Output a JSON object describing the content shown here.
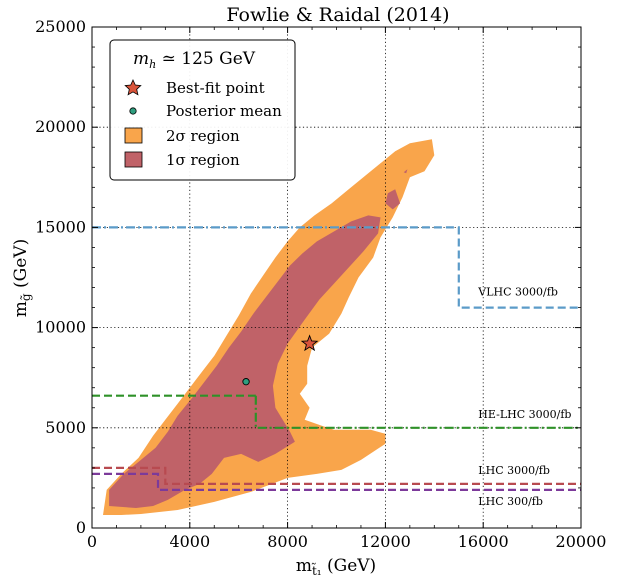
{
  "chart_data": {
    "type": "contour",
    "title": "Fowlie & Raidal (2014)",
    "xlabel": "m_t̃₁ (GeV)",
    "ylabel": "m_g̃ (GeV)",
    "xlim": [
      0,
      20000
    ],
    "ylim": [
      0,
      25000
    ],
    "xticks": [
      "0",
      "4000",
      "8000",
      "12000",
      "16000",
      "20000"
    ],
    "yticks": [
      "0",
      "5000",
      "10000",
      "15000",
      "20000",
      "25000"
    ],
    "grid": true,
    "legend": {
      "placement": "top-left",
      "title": "m_h ≃ 125 GeV",
      "entries": [
        {
          "label": "Best-fit point",
          "marker": "star",
          "color": "#d9543a"
        },
        {
          "label": "Posterior mean",
          "marker": "circle",
          "color": "#2f9e7f"
        },
        {
          "label": "2σ region",
          "marker": "square",
          "color": "#f9a54b"
        },
        {
          "label": "1σ region",
          "marker": "square",
          "color": "#c06268"
        }
      ]
    },
    "regions": [
      {
        "name": "2σ region",
        "color": "#f9a54b",
        "points": [
          [
            450,
            650
          ],
          [
            600,
            1900
          ],
          [
            1200,
            2700
          ],
          [
            1900,
            3500
          ],
          [
            2500,
            4600
          ],
          [
            3000,
            5400
          ],
          [
            3500,
            6200
          ],
          [
            4000,
            7000
          ],
          [
            4500,
            7800
          ],
          [
            5000,
            8600
          ],
          [
            5500,
            9600
          ],
          [
            6000,
            10600
          ],
          [
            6500,
            11700
          ],
          [
            7000,
            12600
          ],
          [
            7500,
            13500
          ],
          [
            8000,
            14300
          ],
          [
            8500,
            15000
          ],
          [
            9100,
            15600
          ],
          [
            9800,
            16200
          ],
          [
            10500,
            16900
          ],
          [
            11200,
            17600
          ],
          [
            11800,
            18200
          ],
          [
            12400,
            18800
          ],
          [
            13000,
            19200
          ],
          [
            13900,
            19400
          ],
          [
            14000,
            18600
          ],
          [
            13600,
            17800
          ],
          [
            13000,
            17500
          ],
          [
            12700,
            16500
          ],
          [
            12300,
            15500
          ],
          [
            11800,
            14500
          ],
          [
            11500,
            13500
          ],
          [
            10900,
            12500
          ],
          [
            10500,
            11500
          ],
          [
            10200,
            10700
          ],
          [
            9700,
            9700
          ],
          [
            9000,
            9000
          ],
          [
            8800,
            8100
          ],
          [
            8800,
            7200
          ],
          [
            8500,
            6700
          ],
          [
            8900,
            6000
          ],
          [
            8700,
            5400
          ],
          [
            9400,
            5100
          ],
          [
            9900,
            4900
          ],
          [
            11400,
            4900
          ],
          [
            12000,
            4700
          ],
          [
            12000,
            4200
          ],
          [
            11000,
            3400
          ],
          [
            10200,
            2900
          ],
          [
            9200,
            2700
          ],
          [
            8000,
            2500
          ],
          [
            6500,
            1800
          ],
          [
            5000,
            1300
          ],
          [
            3500,
            900
          ],
          [
            2000,
            700
          ],
          [
            1200,
            650
          ],
          [
            450,
            650
          ]
        ]
      },
      {
        "name": "1σ region",
        "color": "#c06268",
        "points": [
          [
            700,
            1100
          ],
          [
            700,
            1900
          ],
          [
            1300,
            2700
          ],
          [
            1900,
            3300
          ],
          [
            2600,
            4000
          ],
          [
            3100,
            4800
          ],
          [
            3500,
            5600
          ],
          [
            4100,
            6500
          ],
          [
            4600,
            7300
          ],
          [
            5100,
            8100
          ],
          [
            5600,
            9000
          ],
          [
            6100,
            9800
          ],
          [
            6600,
            10700
          ],
          [
            7100,
            11500
          ],
          [
            7600,
            12300
          ],
          [
            8100,
            13100
          ],
          [
            8600,
            13700
          ],
          [
            9200,
            14300
          ],
          [
            9900,
            14800
          ],
          [
            10600,
            15300
          ],
          [
            11300,
            15600
          ],
          [
            11800,
            15500
          ],
          [
            11700,
            14700
          ],
          [
            11100,
            13800
          ],
          [
            10500,
            13000
          ],
          [
            9900,
            12200
          ],
          [
            9300,
            11400
          ],
          [
            8700,
            10400
          ],
          [
            8000,
            9200
          ],
          [
            7600,
            8200
          ],
          [
            7400,
            7100
          ],
          [
            7500,
            6000
          ],
          [
            8100,
            4800
          ],
          [
            8300,
            4300
          ],
          [
            7500,
            3700
          ],
          [
            6800,
            3300
          ],
          [
            6100,
            3700
          ],
          [
            5400,
            3500
          ],
          [
            4900,
            2700
          ],
          [
            4400,
            2200
          ],
          [
            3800,
            1900
          ],
          [
            3100,
            1400
          ],
          [
            2500,
            1100
          ],
          [
            1800,
            1000
          ],
          [
            700,
            1100
          ]
        ]
      },
      {
        "name": "1σ island",
        "color": "#c06268",
        "points": [
          [
            12000,
            16200
          ],
          [
            12300,
            15900
          ],
          [
            12600,
            16200
          ],
          [
            12400,
            16900
          ],
          [
            12100,
            16700
          ],
          [
            12000,
            16200
          ]
        ]
      },
      {
        "name": "2σ speck",
        "color": "#c06268",
        "points": [
          [
            12750,
            17750
          ],
          [
            12850,
            17700
          ],
          [
            12900,
            17900
          ],
          [
            12750,
            17750
          ]
        ]
      }
    ],
    "best_fit_point": {
      "x": 8900,
      "y": 9200
    },
    "posterior_mean": {
      "x": 6300,
      "y": 7300
    },
    "limit_lines": [
      {
        "label": "VLHC 3000/fb",
        "color": "#5b9bc8",
        "style": "dashdot-then-dash",
        "points": [
          [
            0,
            15000
          ],
          [
            15000,
            15000
          ],
          [
            15000,
            11000
          ],
          [
            20000,
            11000
          ]
        ],
        "dash_switch_x": 13000
      },
      {
        "label": "HE-LHC 3000/fb",
        "color": "#2e9128",
        "style": "dash-then-dashdot",
        "points": [
          [
            0,
            6600
          ],
          [
            6700,
            6600
          ],
          [
            6700,
            5000
          ],
          [
            20000,
            5000
          ]
        ],
        "dash_switch_x": 6700
      },
      {
        "label": "LHC 3000/fb",
        "color": "#b84a50",
        "style": "dashed",
        "points": [
          [
            0,
            3000
          ],
          [
            3000,
            3000
          ],
          [
            3000,
            2200
          ],
          [
            20000,
            2200
          ]
        ]
      },
      {
        "label": "LHC 300/fb",
        "color": "#7c3a9a",
        "style": "dashed",
        "points": [
          [
            0,
            2700
          ],
          [
            2700,
            2700
          ],
          [
            2700,
            1900
          ],
          [
            20000,
            1900
          ]
        ]
      }
    ],
    "annotations": [
      {
        "text": "VLHC 3000/fb",
        "x": 15800,
        "y": 11600
      },
      {
        "text": "HE-LHC 3000/fb",
        "x": 15800,
        "y": 5500
      },
      {
        "text": "LHC 3000/fb",
        "x": 15800,
        "y": 2700
      },
      {
        "text": "LHC 300/fb",
        "x": 15800,
        "y": 1150
      }
    ]
  }
}
